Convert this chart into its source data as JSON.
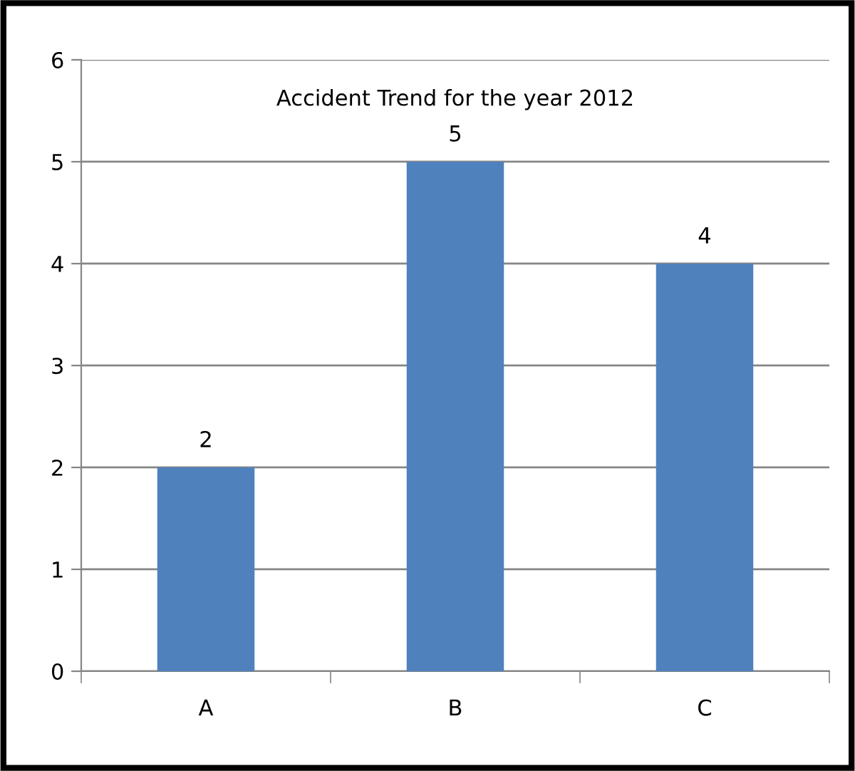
{
  "chart_data": {
    "type": "bar",
    "title": "Accident Trend for the year 2012",
    "categories": [
      "A",
      "B",
      "C"
    ],
    "values": [
      2,
      5,
      4
    ],
    "color": "#4f81bd",
    "ylim": [
      0,
      6
    ],
    "yticks": [
      0,
      1,
      2,
      3,
      4,
      5,
      6
    ],
    "grid": "y",
    "data_labels": true
  }
}
